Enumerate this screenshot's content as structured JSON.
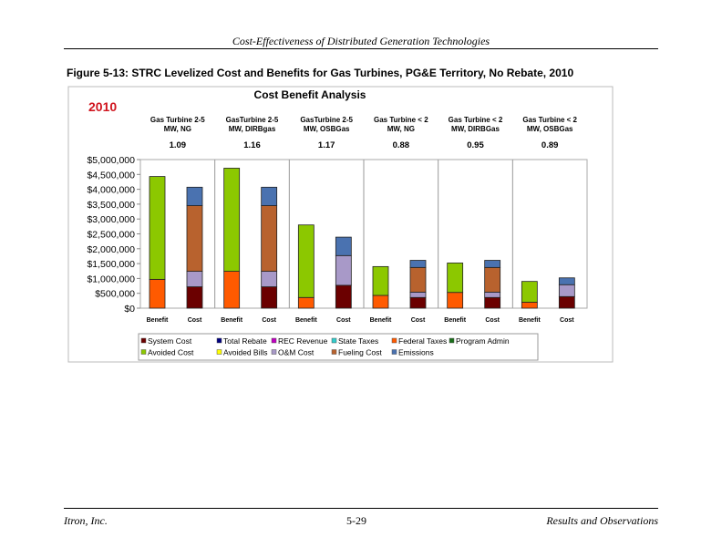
{
  "header": {
    "title": "Cost-Effectiveness of Distributed Generation Technologies"
  },
  "figure": {
    "caption": "Figure 5-13:  STRC Levelized Cost and Benefits for Gas Turbines, PG&E Territory, No Rebate, 2010"
  },
  "footer": {
    "left": "Itron, Inc.",
    "center": "5-29",
    "right": "Results and Observations"
  },
  "chart_data": {
    "type": "bar",
    "stacked": true,
    "title": "Cost Benefit Analysis",
    "year_label": "2010",
    "groups": [
      {
        "label1": "Gas Turbine 2-5",
        "label2": "MW, NG",
        "ratio": "1.09"
      },
      {
        "label1": "GasTurbine 2-5",
        "label2": "MW, DIRBgas",
        "ratio": "1.16"
      },
      {
        "label1": "GasTurbine 2-5",
        "label2": "MW, OSBGas",
        "ratio": "1.17"
      },
      {
        "label1": "Gas Turbine < 2",
        "label2": "MW, NG",
        "ratio": "0.88"
      },
      {
        "label1": "Gas Turbine < 2",
        "label2": "MW, DIRBGas",
        "ratio": "0.95"
      },
      {
        "label1": "Gas Turbine < 2",
        "label2": "MW, OSBGas",
        "ratio": "0.89"
      }
    ],
    "categories": [
      "Benefit",
      "Cost",
      "Benefit",
      "Cost",
      "Benefit",
      "Cost",
      "Benefit",
      "Cost",
      "Benefit",
      "Cost",
      "Benefit",
      "Cost"
    ],
    "yticks": [
      "$0",
      "$500,000",
      "$1,000,000",
      "$1,500,000",
      "$2,000,000",
      "$2,500,000",
      "$3,000,000",
      "$3,500,000",
      "$4,000,000",
      "$4,500,000",
      "$5,000,000"
    ],
    "ylim": [
      0,
      5000000
    ],
    "legend_position": "bottom",
    "series": [
      {
        "name": "System Cost",
        "color": "#6b0000",
        "values": [
          0,
          720000,
          0,
          720000,
          0,
          770000,
          0,
          360000,
          0,
          360000,
          0,
          390000
        ]
      },
      {
        "name": "Total Rebate",
        "color": "#000080",
        "values": [
          0,
          0,
          0,
          0,
          0,
          0,
          0,
          0,
          0,
          0,
          0,
          0
        ]
      },
      {
        "name": "REC Revenue",
        "color": "#c000c0",
        "values": [
          0,
          0,
          0,
          0,
          0,
          0,
          0,
          0,
          0,
          0,
          0,
          0
        ]
      },
      {
        "name": "State Taxes",
        "color": "#33cccc",
        "values": [
          0,
          0,
          0,
          0,
          0,
          0,
          0,
          0,
          0,
          0,
          0,
          0
        ]
      },
      {
        "name": "Federal Taxes",
        "color": "#ff5a00",
        "values": [
          970000,
          0,
          1240000,
          0,
          360000,
          0,
          430000,
          0,
          530000,
          0,
          200000,
          0
        ]
      },
      {
        "name": "Program Admin",
        "color": "#1a6e1a",
        "values": [
          0,
          0,
          0,
          0,
          0,
          0,
          0,
          0,
          0,
          0,
          0,
          0
        ]
      },
      {
        "name": "Avoided Cost",
        "color": "#8cc800",
        "values": [
          3460000,
          0,
          3470000,
          0,
          2440000,
          0,
          970000,
          0,
          990000,
          0,
          700000,
          0
        ]
      },
      {
        "name": "Avoided Bills",
        "color": "#ffff00",
        "values": [
          0,
          0,
          0,
          0,
          0,
          0,
          0,
          0,
          0,
          0,
          0,
          0
        ]
      },
      {
        "name": "O&M Cost",
        "color": "#a899c8",
        "values": [
          0,
          520000,
          0,
          520000,
          0,
          1000000,
          0,
          180000,
          0,
          180000,
          0,
          400000
        ]
      },
      {
        "name": "Fueling Cost",
        "color": "#b8622e",
        "values": [
          0,
          2210000,
          0,
          2210000,
          0,
          0,
          0,
          830000,
          0,
          830000,
          0,
          0
        ]
      },
      {
        "name": "Emissions",
        "color": "#4a72b0",
        "values": [
          0,
          620000,
          0,
          620000,
          0,
          620000,
          0,
          240000,
          0,
          240000,
          0,
          230000
        ]
      }
    ]
  }
}
